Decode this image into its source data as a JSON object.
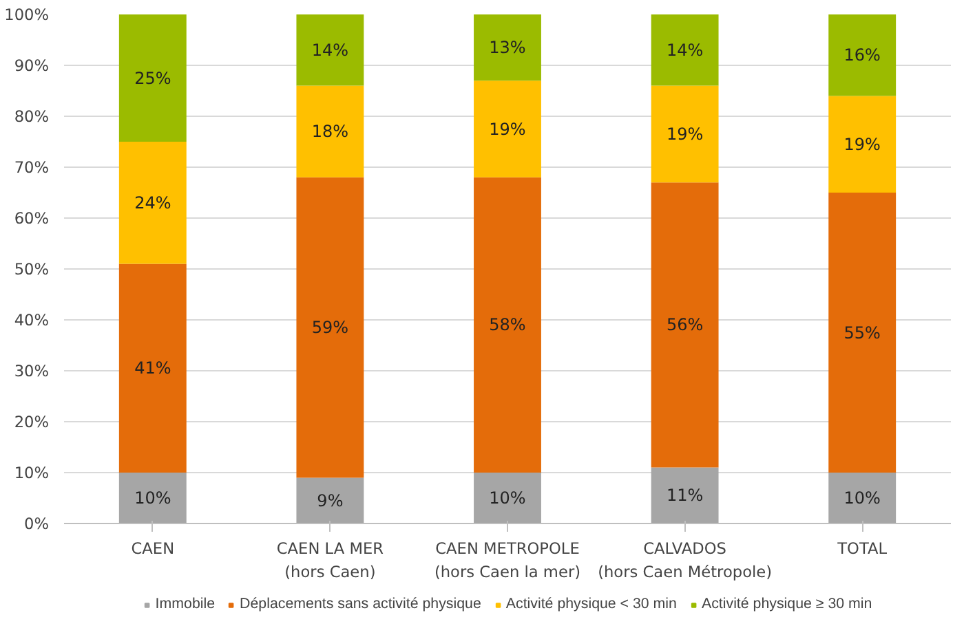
{
  "chart_data": {
    "type": "bar",
    "stacked": true,
    "categories": [
      "CAEN",
      "CAEN LA MER\n(hors Caen)",
      "CAEN METROPOLE\n(hors Caen la mer)",
      "CALVADOS\n(hors Caen Métropole)",
      "TOTAL"
    ],
    "series": [
      {
        "name": "Immobile",
        "color": "#a6a6a6",
        "values": [
          10,
          9,
          10,
          11,
          10
        ],
        "value_labels": [
          "10%",
          "9%",
          "10%",
          "11%",
          "10%"
        ]
      },
      {
        "name": "Déplacements sans activité physique",
        "color": "#e46c0a",
        "values": [
          41,
          59,
          58,
          56,
          55
        ],
        "value_labels": [
          "41%",
          "59%",
          "58%",
          "56%",
          "55%"
        ]
      },
      {
        "name": "Activité physique < 30 min",
        "color": "#ffc000",
        "values": [
          24,
          18,
          19,
          19,
          19
        ],
        "value_labels": [
          "24%",
          "18%",
          "19%",
          "19%",
          "19%"
        ]
      },
      {
        "name": "Activité physique ≥ 30 min",
        "color": "#9bbb00",
        "values": [
          25,
          14,
          13,
          14,
          16
        ],
        "value_labels": [
          "25%",
          "14%",
          "13%",
          "14%",
          "16%"
        ]
      }
    ],
    "ylim": [
      0,
      100
    ],
    "yticks": [
      {
        "value": 0,
        "label": "0%"
      },
      {
        "value": 10,
        "label": "10%"
      },
      {
        "value": 20,
        "label": "20%"
      },
      {
        "value": 30,
        "label": "30%"
      },
      {
        "value": 40,
        "label": "40%"
      },
      {
        "value": 50,
        "label": "50%"
      },
      {
        "value": 60,
        "label": "60%"
      },
      {
        "value": 70,
        "label": "70%"
      },
      {
        "value": 80,
        "label": "80%"
      },
      {
        "value": 90,
        "label": "90%"
      },
      {
        "value": 100,
        "label": "100%"
      }
    ],
    "grid": "y",
    "legend": "bottom"
  }
}
